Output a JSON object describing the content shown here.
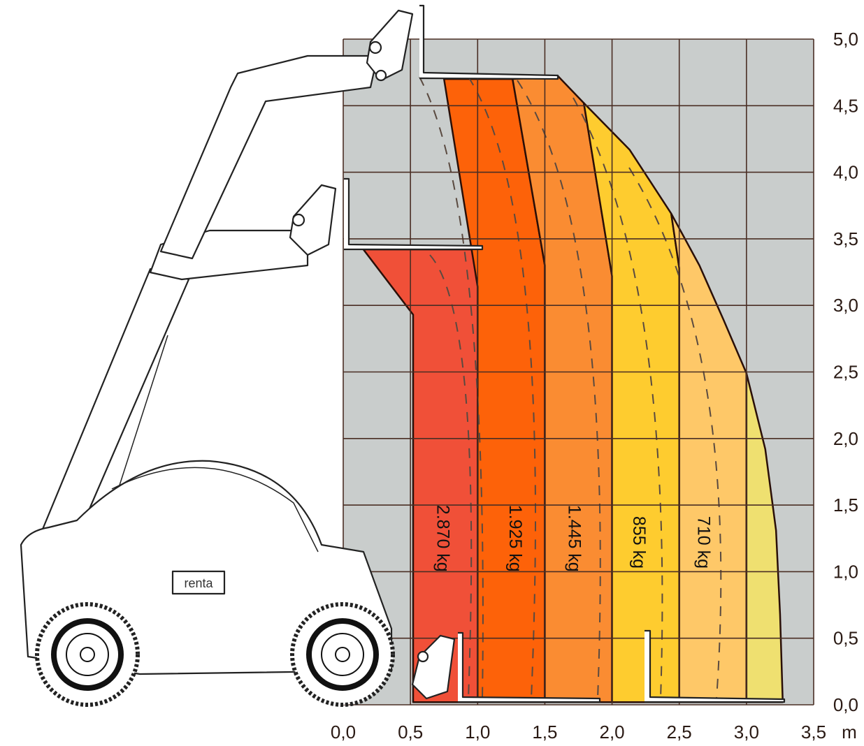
{
  "chart_data": {
    "type": "load-chart",
    "xlabel": "m",
    "x_unit": "m",
    "xlim": [
      0,
      3.5
    ],
    "ylim": [
      0,
      5.0
    ],
    "grid": true,
    "x_ticks": [
      "0,0",
      "0,5",
      "1,0",
      "1,5",
      "2,0",
      "2,5",
      "3,0",
      "3,5"
    ],
    "y_ticks": [
      "0,0",
      "0,5",
      "1,0",
      "1,5",
      "2,0",
      "2,5",
      "3,0",
      "3,5",
      "4,0",
      "4,5",
      "5,0"
    ],
    "colors": {
      "background": "#c9cdcc",
      "grid": "#4a2e24",
      "outline": "#2a0f08"
    },
    "zones": [
      {
        "label": "2.870 kg",
        "color": "#f05038",
        "label_pos": [
          0.74,
          1.25
        ],
        "points": [
          [
            0.52,
            0.02
          ],
          [
            0.52,
            2.93
          ],
          [
            0.15,
            3.42
          ],
          [
            1.0,
            3.42
          ],
          [
            1.0,
            0.02
          ]
        ]
      },
      {
        "label": "1.925 kg",
        "color": "#fd6209",
        "label_pos": [
          1.28,
          1.25
        ],
        "points": [
          [
            0.75,
            4.7
          ],
          [
            1.26,
            4.7
          ],
          [
            1.5,
            3.3
          ],
          [
            1.5,
            0.02
          ],
          [
            1.0,
            0.02
          ],
          [
            1.0,
            3.14
          ]
        ]
      },
      {
        "label": "1.445 kg",
        "color": "#fa8c32",
        "label_pos": [
          1.72,
          1.25
        ],
        "points": [
          [
            1.26,
            4.7
          ],
          [
            1.6,
            4.72
          ],
          [
            1.79,
            4.52
          ],
          [
            2.0,
            3.22
          ],
          [
            2.0,
            0.02
          ],
          [
            1.5,
            0.02
          ],
          [
            1.5,
            3.3
          ]
        ]
      },
      {
        "label": "855 kg",
        "color": "#fecc2f",
        "label_pos": [
          2.2,
          1.22
        ],
        "points": [
          [
            1.79,
            4.52
          ],
          [
            2.13,
            4.17
          ],
          [
            2.44,
            3.69
          ],
          [
            2.5,
            3.28
          ],
          [
            2.5,
            0.02
          ],
          [
            2.0,
            0.02
          ],
          [
            2.0,
            3.22
          ]
        ]
      },
      {
        "label": "710 kg",
        "color": "#fec868",
        "label_pos": [
          2.68,
          1.22
        ],
        "points": [
          [
            2.44,
            3.69
          ],
          [
            2.65,
            3.3
          ],
          [
            2.83,
            2.89
          ],
          [
            3.0,
            2.49
          ],
          [
            3.0,
            0.02
          ],
          [
            2.5,
            0.02
          ],
          [
            2.5,
            3.28
          ]
        ]
      },
      {
        "label": "",
        "color": "#efe070",
        "label_pos": null,
        "points": [
          [
            3.0,
            2.49
          ],
          [
            3.14,
            1.92
          ],
          [
            3.22,
            1.31
          ],
          [
            3.25,
            0.68
          ],
          [
            3.27,
            0.02
          ],
          [
            3.0,
            0.02
          ]
        ]
      }
    ]
  },
  "machine": {
    "brand_logo": "renta"
  }
}
